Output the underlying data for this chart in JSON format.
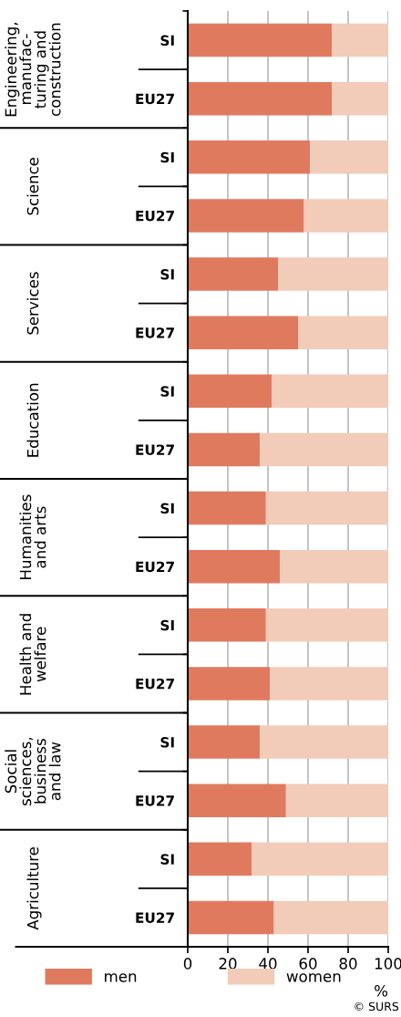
{
  "chart_data": {
    "type": "bar",
    "orientation": "horizontal",
    "stacked": true,
    "categories": [
      "SI",
      "EU27",
      "SI",
      "EU27",
      "SI",
      "EU27",
      "SI",
      "EU27",
      "SI",
      "EU27",
      "SI",
      "EU27",
      "SI",
      "EU27",
      "SI",
      "EU27"
    ],
    "series": [
      {
        "name": "men",
        "color": "#e07a5f",
        "values": [
          72,
          72,
          61,
          58,
          45,
          55,
          42,
          36,
          39,
          46,
          39,
          41,
          36,
          49,
          32,
          43
        ]
      },
      {
        "name": "women",
        "color": "#f2cbb9",
        "values": [
          28,
          28,
          39,
          42,
          55,
          45,
          58,
          64,
          61,
          54,
          61,
          59,
          64,
          51,
          68,
          57
        ]
      }
    ],
    "xlim": [
      0,
      100
    ],
    "xticks": [
      0,
      20,
      40,
      60,
      80,
      100
    ],
    "xlabel": "%",
    "grid": "x",
    "legend": "bottom",
    "annotations": [
      "Engineering,\nmanufac-\nturing and\nconstruction",
      "Science",
      "Services",
      "Education",
      "Humanities\nand arts",
      "Health and\nwelfare",
      "Social\nsciences,\nbusiness\nand law",
      "Agriculture",
      "© SURS"
    ]
  }
}
